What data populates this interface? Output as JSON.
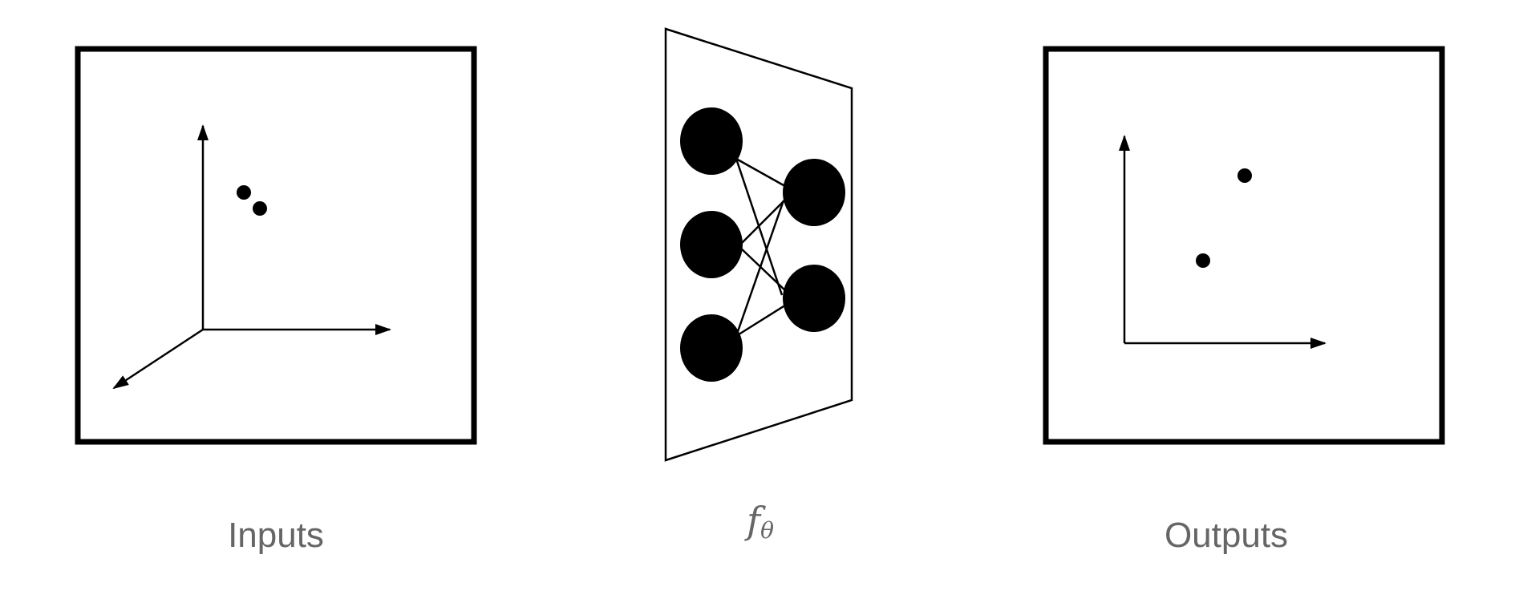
{
  "colors": {
    "stroke": "#000000",
    "caption": "#666666",
    "background": "#ffffff"
  },
  "panels": {
    "inputs": {
      "label": "Inputs",
      "axes_type": "3d",
      "points": 2
    },
    "network": {
      "label_main": "f",
      "label_sub": "θ",
      "layers": [
        3,
        2
      ]
    },
    "outputs": {
      "label": "Outputs",
      "axes_type": "2d",
      "points": 2
    }
  }
}
